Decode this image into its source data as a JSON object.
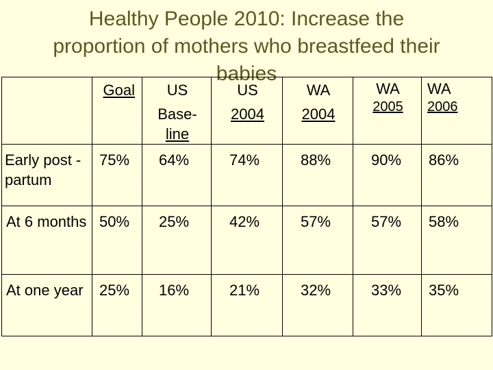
{
  "slide": {
    "title_lines": [
      "Healthy People 2010: Increase the",
      "proportion of mothers who breastfeed their",
      "babies"
    ]
  },
  "table": {
    "headers": [
      {
        "line1": "",
        "line2": "",
        "line3": ""
      },
      {
        "line1": "Goal",
        "line2": "",
        "line3": ""
      },
      {
        "line1": "US",
        "line2": "Base-",
        "line3": "line"
      },
      {
        "line1": "US",
        "line2": "2004",
        "line3": ""
      },
      {
        "line1": "WA",
        "line2": "2004",
        "line3": ""
      },
      {
        "line1": "WA",
        "line2": "2005",
        "line3": ""
      },
      {
        "line1": "WA",
        "line2": "2006",
        "line3": ""
      }
    ],
    "rows": [
      {
        "label": "Early post -partum",
        "values": [
          "75%",
          "64%",
          "74%",
          "88%",
          "90%",
          "86%"
        ]
      },
      {
        "label": "At 6 months",
        "values": [
          "50%",
          "25%",
          "42%",
          "57%",
          "57%",
          "58%"
        ]
      },
      {
        "label": "At one year",
        "values": [
          "25%",
          "16%",
          "21%",
          "32%",
          "33%",
          "35%"
        ]
      }
    ]
  }
}
